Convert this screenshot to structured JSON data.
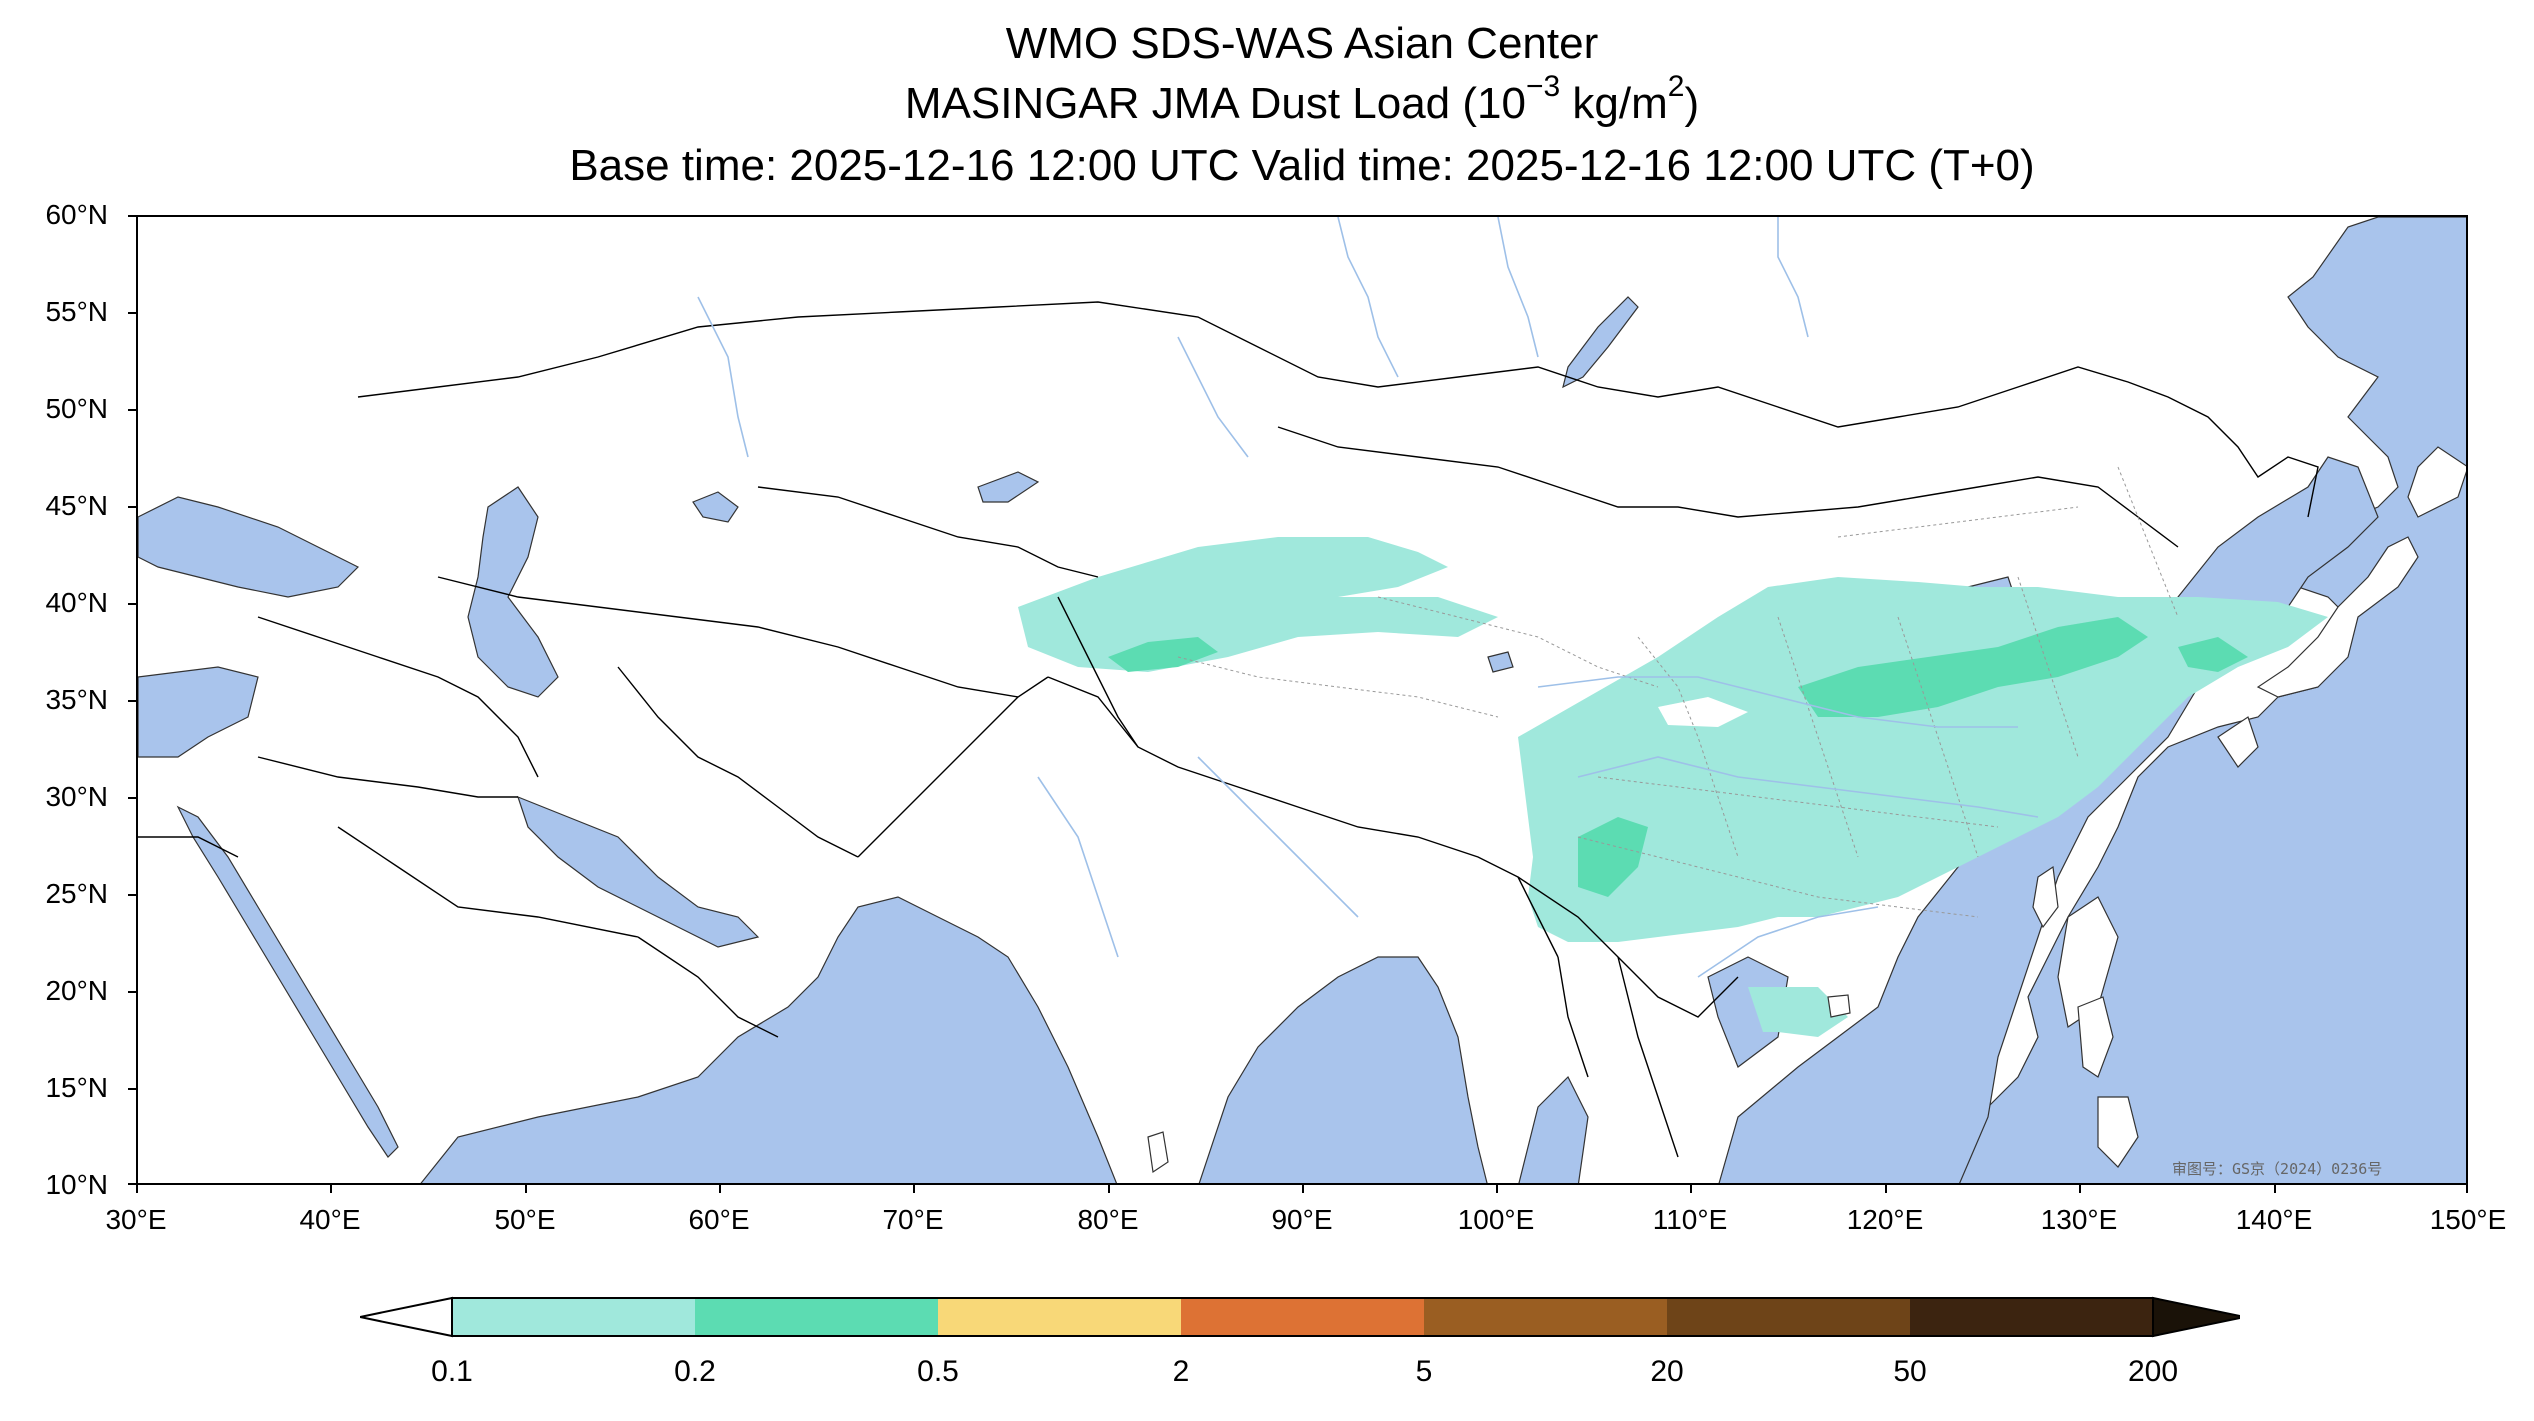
{
  "title": {
    "line1": "WMO SDS-WAS Asian Center",
    "line2_prefix": "MASINGAR JMA Dust Load (10",
    "line2_exp": "−3",
    "line2_mid": " kg/m",
    "line2_exp2": "2",
    "line2_suffix": ")",
    "line3": "Base time: 2025-12-16 12:00 UTC Valid time: 2025-12-16 12:00 UTC (T+0)"
  },
  "map": {
    "extent": {
      "lon_min": 30,
      "lon_max": 150,
      "lat_min": 10,
      "lat_max": 60
    },
    "lat_ticks": [
      "60°N",
      "55°N",
      "50°N",
      "45°N",
      "40°N",
      "35°N",
      "30°N",
      "25°N",
      "20°N",
      "15°N",
      "10°N"
    ],
    "lon_ticks": [
      "30°E",
      "40°E",
      "50°E",
      "60°E",
      "70°E",
      "80°E",
      "90°E",
      "100°E",
      "110°E",
      "120°E",
      "130°E",
      "140°E",
      "150°E"
    ],
    "ocean_color": "#a9c4ec",
    "land_color": "#ffffff",
    "approval_stamp": "审图号：GS京（2024）0236号"
  },
  "colorbar": {
    "levels": [
      "0.1",
      "0.2",
      "0.5",
      "2",
      "5",
      "20",
      "50",
      "200"
    ],
    "colors": [
      "#a0e8dc",
      "#5cdcb2",
      "#f8d878",
      "#dd7234",
      "#9a5e22",
      "#6e4418",
      "#3c2410"
    ],
    "extend_min_color": "#ffffff",
    "extend_max_color": "#1a1208"
  },
  "dust_regions": [
    {
      "level": "0.1-0.2",
      "area": "Tarim Basin / Taklimakan"
    },
    {
      "level": "0.1-0.2",
      "area": "North and Central China to Korea and Japan"
    },
    {
      "level": "0.1-0.2",
      "area": "South China coast near Hainan"
    },
    {
      "level": "0.2-0.5",
      "area": "Southern Tarim Basin"
    },
    {
      "level": "0.2-0.5",
      "area": "North China Plain to Yellow Sea"
    },
    {
      "level": "0.2-0.5",
      "area": "Sichuan Basin"
    }
  ]
}
